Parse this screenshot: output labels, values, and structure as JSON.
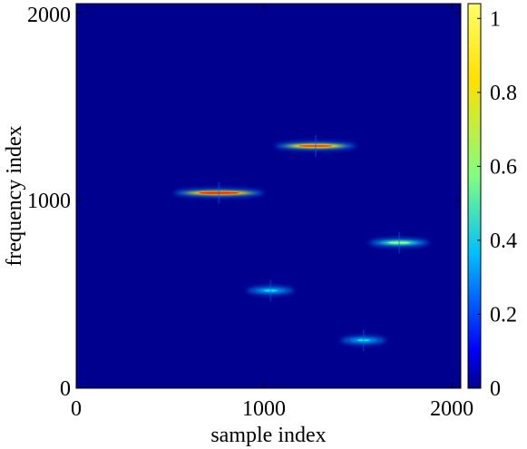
{
  "chart_data": {
    "type": "heatmap",
    "title": "",
    "xlabel": "sample index",
    "ylabel": "frequency index",
    "xlim": [
      0,
      2048
    ],
    "ylim": [
      0,
      2048
    ],
    "x_ticks": [
      0,
      1000,
      2000
    ],
    "y_ticks": [
      0,
      1000,
      2000
    ],
    "colorbar": {
      "range": [
        0,
        1.04
      ],
      "ticks": [
        "0",
        "0.2",
        "0.4",
        "0.6",
        "0.8",
        "1"
      ],
      "colormap": "jet"
    },
    "background_value": 0,
    "components": [
      {
        "x_start": 590,
        "x_end": 930,
        "frequency": 1040,
        "peak": 1.0
      },
      {
        "x_start": 1130,
        "x_end": 1420,
        "frequency": 1290,
        "peak": 0.95
      },
      {
        "x_start": 1630,
        "x_end": 1810,
        "frequency": 775,
        "peak": 0.62
      },
      {
        "x_start": 980,
        "x_end": 1090,
        "frequency": 520,
        "peak": 0.42
      },
      {
        "x_start": 1480,
        "x_end": 1580,
        "frequency": 255,
        "peak": 0.42
      }
    ]
  }
}
